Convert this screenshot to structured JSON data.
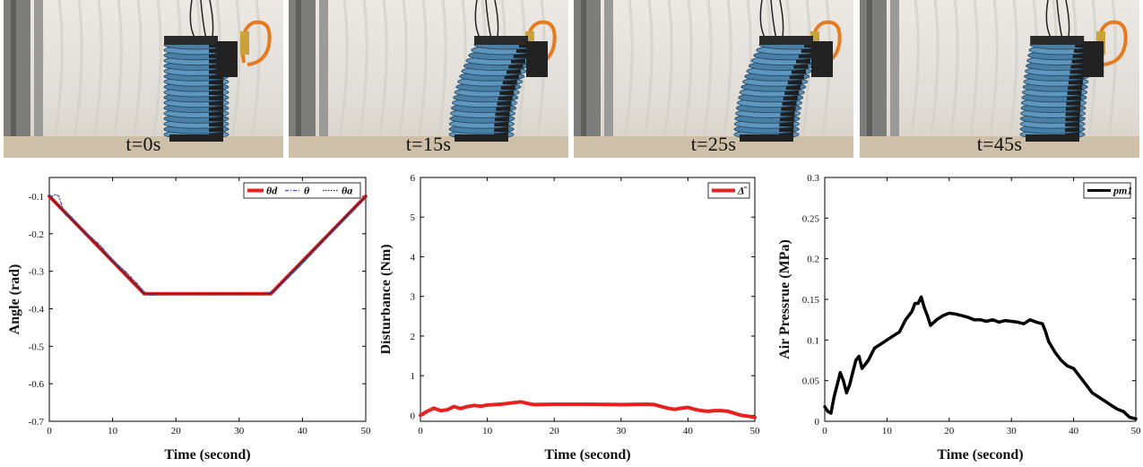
{
  "photos": [
    {
      "label": "t=0s",
      "lean": 0
    },
    {
      "label": "t=15s",
      "lean": 1
    },
    {
      "label": "t=25s",
      "lean": 1
    },
    {
      "label": "t=45s",
      "lean": 0.4
    }
  ],
  "chart_data": [
    {
      "type": "line",
      "xlabel": "Time (second)",
      "ylabel": "Angle (rad)",
      "xlim": [
        0,
        50
      ],
      "ylim": [
        -0.7,
        -0.05
      ],
      "xticks": [
        "0",
        "10",
        "20",
        "30",
        "40",
        "50"
      ],
      "yticks": [
        "-0.1",
        "-0.2",
        "-0.3",
        "-0.4",
        "-0.5",
        "-0.6",
        "-0.7"
      ],
      "legend_position": "top-right",
      "series": [
        {
          "name": "θd",
          "color": "#e8201f",
          "style": "solid",
          "x": [
            0,
            15,
            35,
            50
          ],
          "y": [
            -0.1,
            -0.36,
            -0.36,
            -0.1
          ]
        },
        {
          "name": "θ",
          "color": "#3a4fc4",
          "style": "dash-dot",
          "x": [
            0,
            0.5,
            1,
            1.5,
            2,
            2.5,
            3,
            3.5,
            4,
            5,
            6,
            7,
            8,
            10,
            12,
            14,
            15,
            15.5,
            16,
            17,
            20,
            25,
            30,
            34,
            35,
            35.5,
            36,
            37,
            40,
            45,
            50
          ],
          "y": [
            -0.1,
            -0.1,
            -0.095,
            -0.1,
            -0.125,
            -0.15,
            -0.15,
            -0.155,
            -0.165,
            -0.19,
            -0.2,
            -0.215,
            -0.23,
            -0.27,
            -0.3,
            -0.335,
            -0.355,
            -0.36,
            -0.365,
            -0.36,
            -0.36,
            -0.36,
            -0.36,
            -0.36,
            -0.355,
            -0.35,
            -0.345,
            -0.33,
            -0.28,
            -0.19,
            -0.1
          ]
        },
        {
          "name": "θa",
          "color": "#222222",
          "style": "dotted",
          "x": [
            0,
            15,
            35,
            50
          ],
          "y": [
            -0.1,
            -0.36,
            -0.36,
            -0.1
          ]
        }
      ]
    },
    {
      "type": "line",
      "xlabel": "Time (second)",
      "ylabel": "Disturbance (Nm)",
      "xlim": [
        0,
        50
      ],
      "ylim": [
        -0.15,
        6
      ],
      "xticks": [
        "0",
        "10",
        "20",
        "30",
        "40",
        "50"
      ],
      "yticks": [
        "0",
        "1",
        "2",
        "3",
        "4",
        "5",
        "6"
      ],
      "legend_position": "top-right",
      "series": [
        {
          "name": "Δ̂",
          "color": "#e8201f",
          "style": "solid",
          "x": [
            0,
            1,
            2,
            3,
            4,
            5,
            6,
            7,
            8,
            9,
            10,
            12,
            14,
            15,
            16,
            17,
            20,
            25,
            30,
            34,
            35,
            36,
            37,
            38,
            39,
            40,
            41,
            42,
            43,
            44,
            45,
            46,
            47,
            48,
            49,
            50
          ],
          "y": [
            0,
            0.1,
            0.18,
            0.12,
            0.14,
            0.22,
            0.17,
            0.22,
            0.25,
            0.23,
            0.26,
            0.28,
            0.32,
            0.34,
            0.3,
            0.27,
            0.28,
            0.28,
            0.27,
            0.28,
            0.27,
            0.22,
            0.18,
            0.15,
            0.18,
            0.2,
            0.15,
            0.12,
            0.1,
            0.12,
            0.12,
            0.1,
            0.05,
            0.0,
            -0.02,
            -0.05
          ]
        }
      ]
    },
    {
      "type": "line",
      "xlabel": "Time (second)",
      "ylabel": "Air Pressrue (MPa)",
      "xlim": [
        0,
        50
      ],
      "ylim": [
        0,
        0.3
      ],
      "xticks": [
        "0",
        "10",
        "20",
        "30",
        "40",
        "50"
      ],
      "yticks": [
        "0",
        "0.05",
        "0.1",
        "0.15",
        "0.2",
        "0.25",
        "0.3"
      ],
      "legend_position": "top-right",
      "series": [
        {
          "name": "pm1",
          "color": "#000000",
          "style": "solid",
          "x": [
            0,
            0.5,
            1,
            1.5,
            2,
            2.5,
            3,
            3.5,
            4,
            4.5,
            5,
            5.5,
            6,
            7,
            8,
            9,
            10,
            11,
            12,
            13,
            14,
            14.5,
            15,
            15.5,
            16,
            16.5,
            17,
            18,
            19,
            20,
            21,
            22,
            23,
            24,
            25,
            26,
            27,
            28,
            29,
            30,
            31,
            32,
            33,
            34,
            35,
            35.5,
            36,
            37,
            38,
            39,
            40,
            41,
            42,
            43,
            44,
            45,
            46,
            47,
            48,
            49,
            50
          ],
          "y": [
            0.018,
            0.012,
            0.01,
            0.03,
            0.045,
            0.06,
            0.05,
            0.035,
            0.045,
            0.06,
            0.075,
            0.08,
            0.065,
            0.075,
            0.09,
            0.095,
            0.1,
            0.105,
            0.11,
            0.125,
            0.135,
            0.145,
            0.145,
            0.153,
            0.14,
            0.13,
            0.118,
            0.125,
            0.13,
            0.133,
            0.132,
            0.13,
            0.128,
            0.125,
            0.125,
            0.123,
            0.125,
            0.122,
            0.124,
            0.123,
            0.122,
            0.12,
            0.125,
            0.122,
            0.12,
            0.11,
            0.098,
            0.085,
            0.075,
            0.068,
            0.065,
            0.055,
            0.045,
            0.035,
            0.03,
            0.025,
            0.02,
            0.015,
            0.012,
            0.005,
            0.003
          ]
        }
      ]
    }
  ]
}
